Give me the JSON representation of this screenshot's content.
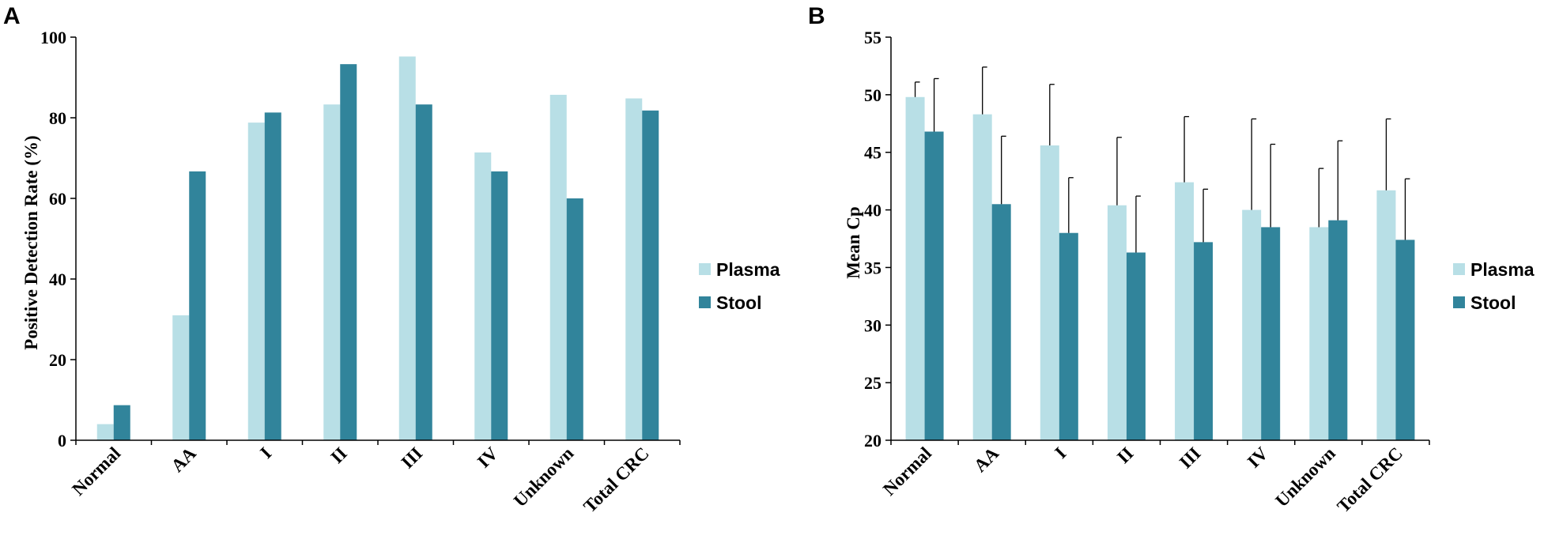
{
  "colors": {
    "plasma": "#b8dfe6",
    "stool": "#31849b"
  },
  "chart_data": [
    {
      "panel": "A",
      "type": "bar",
      "categories": [
        "Normal",
        "AA",
        "I",
        "II",
        "III",
        "IV",
        "Unknown",
        "Total CRC"
      ],
      "series": [
        {
          "name": "Plasma",
          "values": [
            4,
            31,
            78.8,
            83.3,
            95.2,
            71.4,
            85.7,
            84.8
          ]
        },
        {
          "name": "Stool",
          "values": [
            8.7,
            66.7,
            81.3,
            93.3,
            83.3,
            66.7,
            60,
            81.8
          ]
        }
      ],
      "ylabel": "Positive Detection Rate (%)",
      "xlabel": "",
      "ylim": [
        0,
        100
      ],
      "yticks": [
        0,
        20,
        40,
        60,
        80,
        100
      ],
      "legend": [
        "Plasma",
        "Stool"
      ],
      "legend_position": "right"
    },
    {
      "panel": "B",
      "type": "bar",
      "categories": [
        "Normal",
        "AA",
        "I",
        "II",
        "III",
        "IV",
        "Unknown",
        "Total CRC"
      ],
      "series": [
        {
          "name": "Plasma",
          "values": [
            49.8,
            48.3,
            45.6,
            40.4,
            42.4,
            40,
            38.5,
            41.7
          ],
          "error": [
            1.3,
            4.1,
            5.3,
            5.9,
            5.7,
            7.9,
            5.1,
            6.2
          ]
        },
        {
          "name": "Stool",
          "values": [
            46.8,
            40.5,
            38,
            36.3,
            37.2,
            38.5,
            39.1,
            37.4
          ],
          "error": [
            4.6,
            5.9,
            4.8,
            4.9,
            4.6,
            7.2,
            6.9,
            5.3
          ]
        }
      ],
      "ylabel": "Mean Cp",
      "xlabel": "",
      "ylim": [
        20,
        55
      ],
      "yticks": [
        20,
        25,
        30,
        35,
        40,
        45,
        50,
        55
      ],
      "legend": [
        "Plasma",
        "Stool"
      ],
      "legend_position": "right"
    }
  ]
}
